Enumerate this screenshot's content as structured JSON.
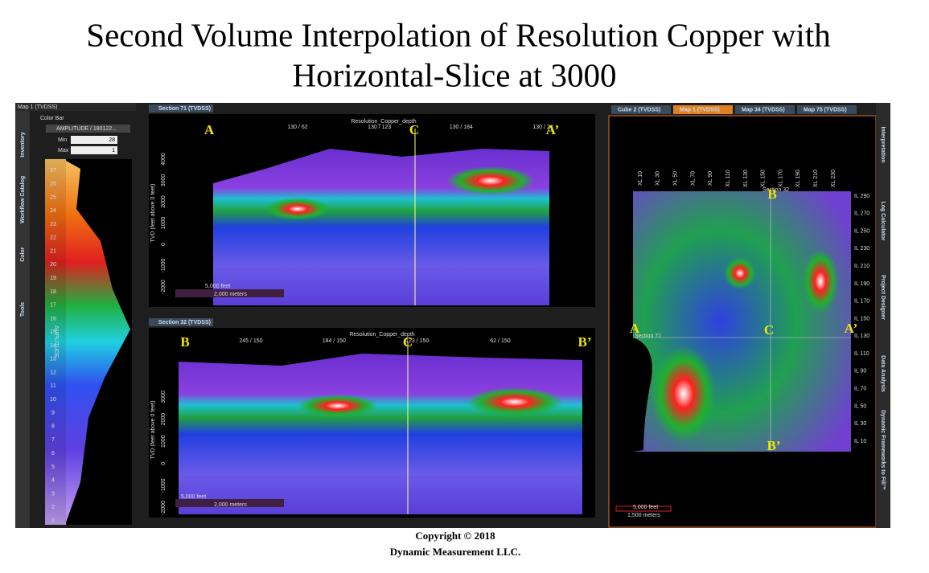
{
  "title_lines": [
    "Second Volume Interpolation of Resolution Copper with",
    "Horizontal-Slice at 3000"
  ],
  "left_panel": {
    "header": "Map 1 (TVDSS)",
    "color_bar": "Color Bar",
    "attribute": "AMPLITUDE / 180122...",
    "min_label": "Min",
    "min_value": 28,
    "max_label": "Max",
    "max_value": 1,
    "axis_label": "AMPLITUDE",
    "scale_ticks": [
      27,
      26,
      25,
      24,
      23,
      22,
      21,
      20,
      19,
      18,
      17,
      16,
      15,
      14,
      13,
      12,
      11,
      10,
      9,
      8,
      7,
      6,
      5,
      4,
      3,
      2,
      1
    ],
    "side_tabs": [
      "Inventory",
      "Workflow Catalog",
      "Color",
      "Tools"
    ]
  },
  "section_top": {
    "tab": "Section 71 (TVDSS)",
    "title": "Resolution_Copper_depth",
    "x_labels": [
      "130 / 62",
      "130 / 123",
      "130 / 184",
      "130 / 24"
    ],
    "y_label": "TVD (feet above 0 feet)",
    "y_ticks": [
      4000,
      3000,
      2000,
      1000,
      0,
      -1000,
      -2000
    ],
    "scale": [
      "5,000 feet",
      "2,000 meters"
    ],
    "markers": [
      "A",
      "C",
      "A’"
    ]
  },
  "section_bottom": {
    "tab": "Section 32 (TVDSS)",
    "title": "Resolution_Copper_depth",
    "x_labels": [
      "245 / 150",
      "184 / 150",
      "123 / 150",
      "62 / 150"
    ],
    "y_label": "TVD (feet above 0 feet)",
    "y_ticks": [
      3000,
      2000,
      1000,
      0,
      -1000,
      -2000
    ],
    "scale": [
      "5,000 feet",
      "2,000 meters"
    ],
    "markers": [
      "B",
      "C",
      "B’"
    ]
  },
  "map_panel": {
    "tabs": [
      "Cube 2 (TVDSS)",
      "Map 1 (TVDSS)",
      "Map 34 (TVDSS)",
      "Map 75 (TVDSS)"
    ],
    "xl_labels": [
      "XL 10",
      "XL 30",
      "XL 50",
      "XL 70",
      "XL 90",
      "XL 110",
      "XL 130",
      "XL 150",
      "XL 170",
      "XL 190",
      "XL 210",
      "XL 230"
    ],
    "il_labels": [
      "IL 290",
      "IL 270",
      "IL 250",
      "IL 230",
      "IL 210",
      "IL 190",
      "IL 170",
      "IL 150",
      "IL 130",
      "IL 110",
      "IL 90",
      "IL 70",
      "IL 50",
      "IL 30",
      "IL 10"
    ],
    "section_labels": [
      "Section 32",
      "Section 71"
    ],
    "markers": [
      "B",
      "A",
      "C",
      "A’",
      "B’"
    ],
    "scale": [
      "5,000 feet",
      "1,500 meters"
    ],
    "side_tabs": [
      "Interpretation",
      "Log Calculator",
      "Project Designer",
      "Data Analysis",
      "Dynamic Frameworks to Fill™"
    ]
  },
  "copyright": [
    "Copyright  © 2018",
    "Dynamic Measurement LLC."
  ]
}
